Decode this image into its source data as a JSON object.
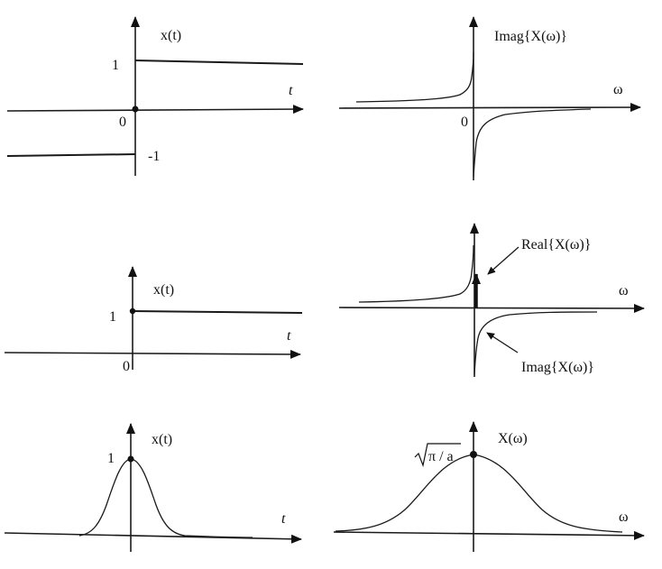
{
  "panels": {
    "sign_time": {
      "signal_label": "x(t)",
      "axis_var": "t",
      "origin": "0",
      "level_pos": "1",
      "level_neg": "-1"
    },
    "sign_freq": {
      "label": "Imag{X(ω)}",
      "axis_var": "ω",
      "origin": "0"
    },
    "step_time": {
      "signal_label": "x(t)",
      "axis_var": "t",
      "origin": "0",
      "level": "1"
    },
    "step_freq": {
      "real_label": "Real{X(ω)}",
      "imag_label": "Imag{X(ω)}",
      "axis_var": "ω"
    },
    "gauss_time": {
      "signal_label": "x(t)",
      "axis_var": "t",
      "peak": "1"
    },
    "gauss_freq": {
      "signal_label": "X(ω)",
      "axis_var": "ω",
      "peak_label": "π / a"
    }
  }
}
